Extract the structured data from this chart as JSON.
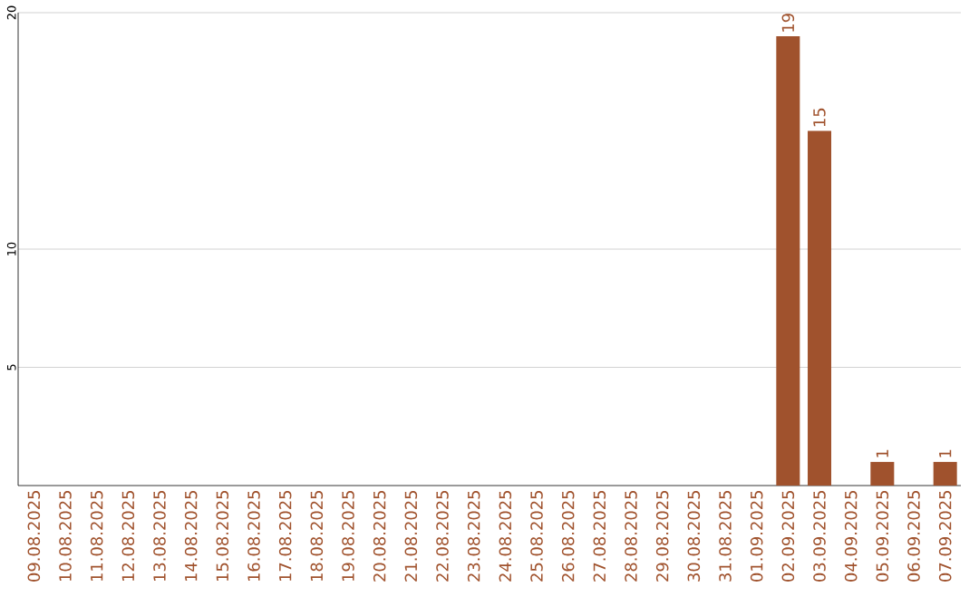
{
  "chart_data": {
    "type": "bar",
    "categories": [
      "09.08.2025",
      "10.08.2025",
      "11.08.2025",
      "12.08.2025",
      "13.08.2025",
      "14.08.2025",
      "15.08.2025",
      "16.08.2025",
      "17.08.2025",
      "18.08.2025",
      "19.08.2025",
      "20.08.2025",
      "21.08.2025",
      "22.08.2025",
      "23.08.2025",
      "24.08.2025",
      "25.08.2025",
      "26.08.2025",
      "27.08.2025",
      "28.08.2025",
      "29.08.2025",
      "30.08.2025",
      "31.08.2025",
      "01.09.2025",
      "02.09.2025",
      "03.09.2025",
      "04.09.2025",
      "05.09.2025",
      "06.09.2025",
      "07.09.2025"
    ],
    "values": [
      0,
      0,
      0,
      0,
      0,
      0,
      0,
      0,
      0,
      0,
      0,
      0,
      0,
      0,
      0,
      0,
      0,
      0,
      0,
      0,
      0,
      0,
      0,
      0,
      19,
      15,
      0,
      1,
      0,
      1
    ],
    "value_labels": [
      null,
      null,
      null,
      null,
      null,
      null,
      null,
      null,
      null,
      null,
      null,
      null,
      null,
      null,
      null,
      null,
      null,
      null,
      null,
      null,
      null,
      null,
      null,
      null,
      "19",
      "15",
      null,
      "1",
      null,
      "1"
    ],
    "color": "#a0522d",
    "ylim": [
      0,
      20
    ],
    "yticks": [
      5,
      10,
      20
    ],
    "grid": "y"
  }
}
